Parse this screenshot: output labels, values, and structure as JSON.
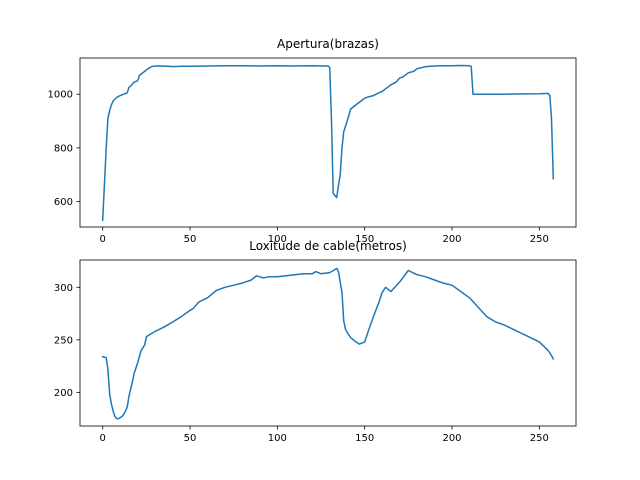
{
  "chart_data": [
    {
      "type": "line",
      "title": "Apertura(brazas)",
      "xlabel": "",
      "ylabel": "",
      "xlim": [
        -13,
        271
      ],
      "ylim": [
        505,
        1135
      ],
      "xticks": [
        0,
        50,
        100,
        150,
        200,
        250
      ],
      "yticks": [
        600,
        800,
        1000
      ],
      "grid": false,
      "color": "#1f77b4",
      "series": [
        {
          "x": [
            0,
            2,
            3,
            4,
            5,
            6,
            8,
            10,
            12,
            14,
            15,
            16,
            18,
            20,
            21,
            22,
            24,
            26,
            28,
            30,
            35,
            40,
            45,
            50,
            60,
            70,
            80,
            90,
            100,
            110,
            120,
            127,
            129,
            130,
            131,
            132,
            134,
            135,
            136,
            137,
            138,
            140,
            142,
            145,
            148,
            150,
            152,
            155,
            158,
            160,
            162,
            165,
            168,
            170,
            172,
            175,
            178,
            180,
            185,
            190,
            195,
            200,
            205,
            210,
            211,
            212,
            220,
            230,
            240,
            250,
            255,
            256,
            257,
            258
          ],
          "y": [
            530,
            800,
            910,
            940,
            960,
            975,
            988,
            995,
            1000,
            1005,
            1025,
            1030,
            1045,
            1050,
            1070,
            1075,
            1085,
            1095,
            1103,
            1105,
            1105,
            1103,
            1104,
            1104,
            1105,
            1106,
            1106,
            1105,
            1106,
            1105,
            1106,
            1105,
            1105,
            1100,
            900,
            630,
            615,
            660,
            700,
            800,
            860,
            900,
            945,
            960,
            975,
            985,
            990,
            995,
            1005,
            1010,
            1020,
            1035,
            1045,
            1060,
            1065,
            1080,
            1085,
            1095,
            1103,
            1105,
            1106,
            1106,
            1107,
            1106,
            1104,
            1000,
            1000,
            1000,
            1001,
            1002,
            1003,
            995,
            910,
            685
          ]
        }
      ]
    },
    {
      "type": "line",
      "title": "Loxitude de cable(metros)",
      "xlabel": "",
      "ylabel": "",
      "xlim": [
        -13,
        271
      ],
      "ylim": [
        168,
        326
      ],
      "xticks": [
        0,
        50,
        100,
        150,
        200,
        250
      ],
      "yticks": [
        200,
        250,
        300
      ],
      "grid": false,
      "color": "#1f77b4",
      "series": [
        {
          "x": [
            0,
            2,
            3,
            4,
            5,
            6,
            7,
            8,
            9,
            10,
            11,
            12,
            13,
            14,
            15,
            16,
            17,
            18,
            20,
            22,
            24,
            25,
            26,
            28,
            30,
            35,
            40,
            45,
            50,
            52,
            55,
            60,
            65,
            70,
            75,
            80,
            85,
            88,
            90,
            92,
            95,
            100,
            105,
            110,
            115,
            120,
            122,
            125,
            130,
            133,
            134,
            135,
            136,
            137,
            138,
            139,
            140,
            142,
            145,
            147,
            150,
            152,
            155,
            158,
            160,
            162,
            165,
            170,
            175,
            180,
            185,
            190,
            195,
            200,
            205,
            210,
            215,
            220,
            225,
            230,
            235,
            240,
            245,
            250,
            255,
            257,
            258
          ],
          "y": [
            234,
            233,
            222,
            198,
            189,
            182,
            177,
            175,
            175,
            176,
            177,
            179,
            182,
            186,
            196,
            203,
            210,
            218,
            228,
            240,
            245,
            253,
            254,
            256,
            258,
            262,
            267,
            272,
            278,
            280,
            286,
            290,
            297,
            300,
            302,
            304,
            307,
            311,
            310,
            309,
            310,
            310,
            311,
            312,
            313,
            313,
            315,
            313,
            314,
            317,
            318,
            315,
            305,
            295,
            268,
            260,
            257,
            252,
            248,
            246,
            248,
            258,
            272,
            285,
            295,
            300,
            296,
            305,
            316,
            312,
            310,
            307,
            304,
            302,
            296,
            290,
            281,
            272,
            267,
            264,
            260,
            256,
            252,
            248,
            240,
            235,
            232
          ]
        }
      ]
    }
  ]
}
